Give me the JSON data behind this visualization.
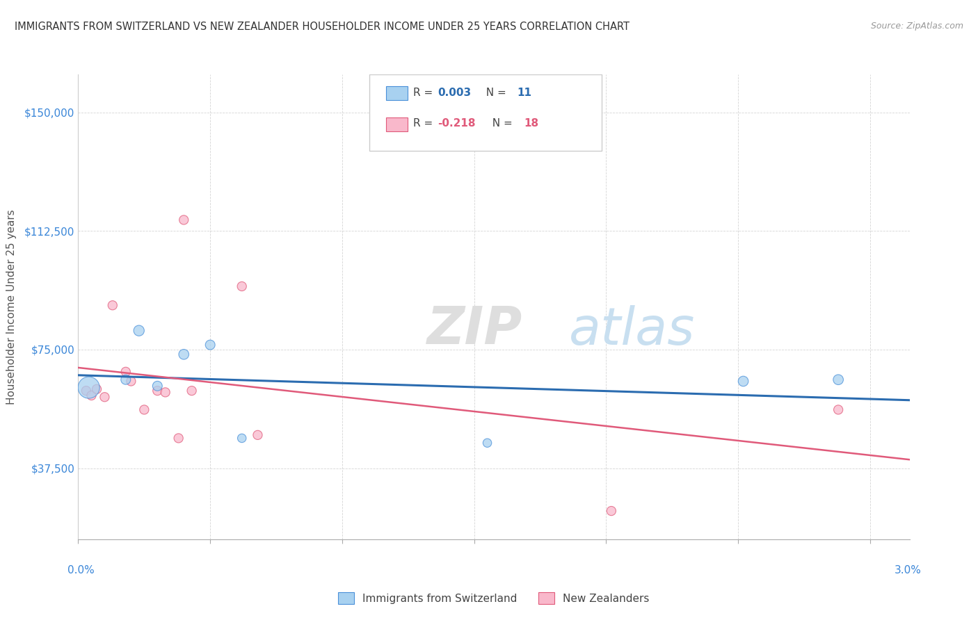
{
  "title": "IMMIGRANTS FROM SWITZERLAND VS NEW ZEALANDER HOUSEHOLDER INCOME UNDER 25 YEARS CORRELATION CHART",
  "source": "Source: ZipAtlas.com",
  "ylabel": "Householder Income Under 25 years",
  "xlim": [
    0.0,
    3.15
  ],
  "ylim": [
    15000,
    162000
  ],
  "ytick_vals": [
    37500,
    75000,
    112500,
    150000
  ],
  "ytick_labels": [
    "$37,500",
    "$75,000",
    "$112,500",
    "$150,000"
  ],
  "legend_bottom1": "Immigrants from Switzerland",
  "legend_bottom2": "New Zealanders",
  "watermark_zip": "ZIP",
  "watermark_atlas": "atlas",
  "blue_color": "#a8d1f0",
  "blue_edge_color": "#4a90d9",
  "pink_color": "#f9b8cb",
  "pink_edge_color": "#e05a7a",
  "blue_line_color": "#2b6cb0",
  "pink_line_color": "#e05a7a",
  "blue_scatter_x": [
    0.04,
    0.18,
    0.23,
    0.3,
    0.4,
    0.5,
    0.62,
    1.55,
    2.52,
    2.88
  ],
  "blue_scatter_y": [
    63000,
    65500,
    81000,
    63500,
    73500,
    76500,
    47000,
    45500,
    65000,
    65500
  ],
  "blue_sizes": [
    500,
    100,
    120,
    100,
    110,
    100,
    80,
    80,
    110,
    110
  ],
  "pink_scatter_x": [
    0.03,
    0.05,
    0.07,
    0.1,
    0.13,
    0.18,
    0.2,
    0.25,
    0.3,
    0.33,
    0.38,
    0.4,
    0.43,
    0.62,
    0.68,
    2.02,
    2.88
  ],
  "pink_scatter_y": [
    62000,
    60500,
    62500,
    60000,
    89000,
    68000,
    65000,
    56000,
    62000,
    61500,
    47000,
    116000,
    62000,
    95000,
    48000,
    24000,
    56000
  ],
  "pink_sizes": [
    90,
    90,
    90,
    90,
    90,
    90,
    90,
    90,
    90,
    90,
    90,
    90,
    90,
    90,
    90,
    90,
    90
  ],
  "grid_color": "#d0d0d0",
  "bg_color": "#ffffff",
  "title_color": "#333333",
  "yaxis_color": "#3a86d8",
  "xaxis_color": "#3a86d8"
}
